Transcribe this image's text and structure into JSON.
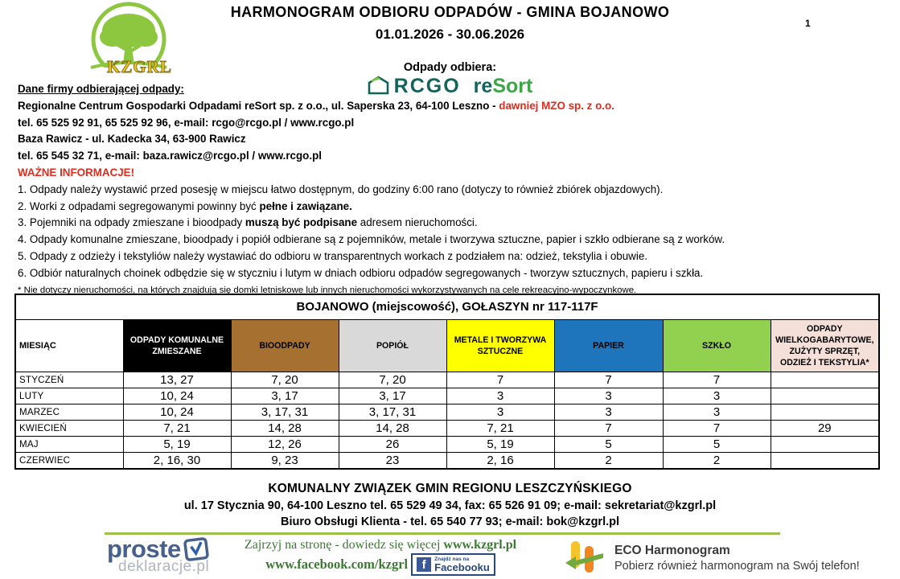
{
  "page": {
    "number": "1"
  },
  "header": {
    "title_line1": "HARMONOGRAM ODBIORU ODPADÓW - GMINA BOJANOWO",
    "title_line2": "01.01.2026 - 30.06.2026",
    "kzgrl_logo_text": "KZGRL",
    "collector_heading": "Odpady odbiera:",
    "rcgo_logo": {
      "word": "RCGO",
      "re": "re",
      "sort": "Sort"
    }
  },
  "company_info": {
    "heading": "Dane firmy odbierającej odpady: ",
    "line1_main": "Regionalne Centrum Gospodarki Odpadami reSort sp. z o.o., ul. Saperska 23, 64-100 Leszno - ",
    "line1_red": "dawniej MZO sp. z o.o.",
    "line2": "tel. 65 525 92 91, 65 525 92 96, e-mail: rcgo@rcgo.pl / www.rcgo.pl",
    "line3": "Baza Rawicz - ul. Kadecka 34, 63-900 Rawicz",
    "line4": "tel. 65 545 32 71, e-mail: baza.rawicz@rcgo.pl / www.rcgo.pl"
  },
  "important": {
    "heading": "WAŻNE INFORMACJE!",
    "notes": [
      [
        {
          "t": "1. Odpady należy wystawić przed posesję w miejscu łatwo dostępnym, do godziny 6:00 rano (dotyczy to również zbiórek objazdowych).",
          "b": false
        }
      ],
      [
        {
          "t": "2. Worki z odpadami segregowanymi powinny być ",
          "b": false
        },
        {
          "t": "pełne i zawiązane.",
          "b": true
        }
      ],
      [
        {
          "t": "3. Pojemniki na odpady zmieszane i bioodpady ",
          "b": false
        },
        {
          "t": "muszą być podpisane",
          "b": true
        },
        {
          "t": " adresem nieruchomości.",
          "b": false
        }
      ],
      [
        {
          "t": "4. Odpady komunalne zmieszane, bioodpady i popiół odbierane są z pojemników, metale i tworzywa sztuczne, papier i szkło odbierane są z worków.",
          "b": false
        }
      ],
      [
        {
          "t": "5. Odpady z odzieży i tekstyliów należy wystawiać do odbioru w transparentnych workach z podziałem na: odzież, tekstylia i obuwie.",
          "b": false
        }
      ],
      [
        {
          "t": "6. Odbiór naturalnych choinek odbędzie się w styczniu i lutym w dniach odbioru odpadów segregowanych - tworzyw sztucznych, papieru i szkła.",
          "b": false
        }
      ]
    ],
    "footnote": "* Nie dotyczy nieruchomości, na których znajdują się domki letniskowe lub innych nieruchomości wykorzystywanych na cele rekreacyjno-wypoczynkowe."
  },
  "schedule": {
    "title": "BOJANOWO (miejscowość), GOŁASZYN nr 117-117F",
    "columns": [
      {
        "label": "MIESIĄC",
        "bg": "#FFFFFF",
        "color": "#000000"
      },
      {
        "label": "ODPADY KOMUNALNE ZMIESZANE",
        "bg": "#000000",
        "color": "#FFFFFF"
      },
      {
        "label": "BIOODPADY",
        "bg": "#A57030",
        "color": "#000000"
      },
      {
        "label": "POPIÓŁ",
        "bg": "#D9D9D9",
        "color": "#000000"
      },
      {
        "label": "METALE I TWORZYWA SZTUCZNE",
        "bg": "#FFFF00",
        "color": "#000000"
      },
      {
        "label": "PAPIER",
        "bg": "#1F75BC",
        "color": "#000000"
      },
      {
        "label": "SZKŁO",
        "bg": "#92D050",
        "color": "#000000"
      },
      {
        "label": "ODPADY WIELKOGABARYTOWE, ZUŻYTY SPRZĘT, ODZIEŻ I TEKSTYLIA*",
        "bg": "#F4E0D8",
        "color": "#000000"
      }
    ],
    "rows": [
      [
        "STYCZEŃ",
        "13, 27",
        "7, 20",
        "7, 20",
        "7",
        "7",
        "7",
        ""
      ],
      [
        "LUTY",
        "10, 24",
        "3, 17",
        "3, 17",
        "3",
        "3",
        "3",
        ""
      ],
      [
        "MARZEC",
        "10, 24",
        "3, 17, 31",
        "3, 17, 31",
        "3",
        "3",
        "3",
        ""
      ],
      [
        "KWIECIEŃ",
        "7, 21",
        "14, 28",
        "14, 28",
        "7, 21",
        "7",
        "7",
        "29"
      ],
      [
        "MAJ",
        "5, 19",
        "12, 26",
        "26",
        "5, 19",
        "5",
        "5",
        ""
      ],
      [
        "CZERWIEC",
        "2, 16, 30",
        "9, 23",
        "23",
        "2, 16",
        "2",
        "2",
        ""
      ]
    ]
  },
  "footer": {
    "line1": "KOMUNALNY ZWIĄZEK GMIN REGIONU LESZCZYŃSKIEGO",
    "line2": "ul. 17 Stycznia 90, 64-100 Leszno   tel. 65 529 49 34, fax: 65 526 91 09; e-mail: sekretariat@kzgrl.pl",
    "line3": "Biuro Obsługi Klienta - tel. 65 540 77 93;  e-mail: bok@kzgrl.pl"
  },
  "bottom": {
    "proste": {
      "word1": "proste",
      "word2": "deklaracje.pl"
    },
    "links": {
      "visit_text": "Zajrzyj na stronę - dowiedz się więcej ",
      "site_url": "www.kzgrl.pl",
      "facebook_url": "www.facebook.com/kzgrl",
      "fb_badge_small": "Znajdź nas na",
      "fb_badge_big": "Facebooku",
      "fb_letter": "f"
    },
    "eco": {
      "title": "ECO Harmonogram",
      "subtitle": "Pobierz również harmonogram na Swój telefon!"
    }
  },
  "colors": {
    "red": "#E02B1D",
    "rcgo_teal": "#14645C",
    "rcgo_green": "#3FA549",
    "divider_green": "#9DC04B",
    "facebook_blue": "#3B5998"
  }
}
